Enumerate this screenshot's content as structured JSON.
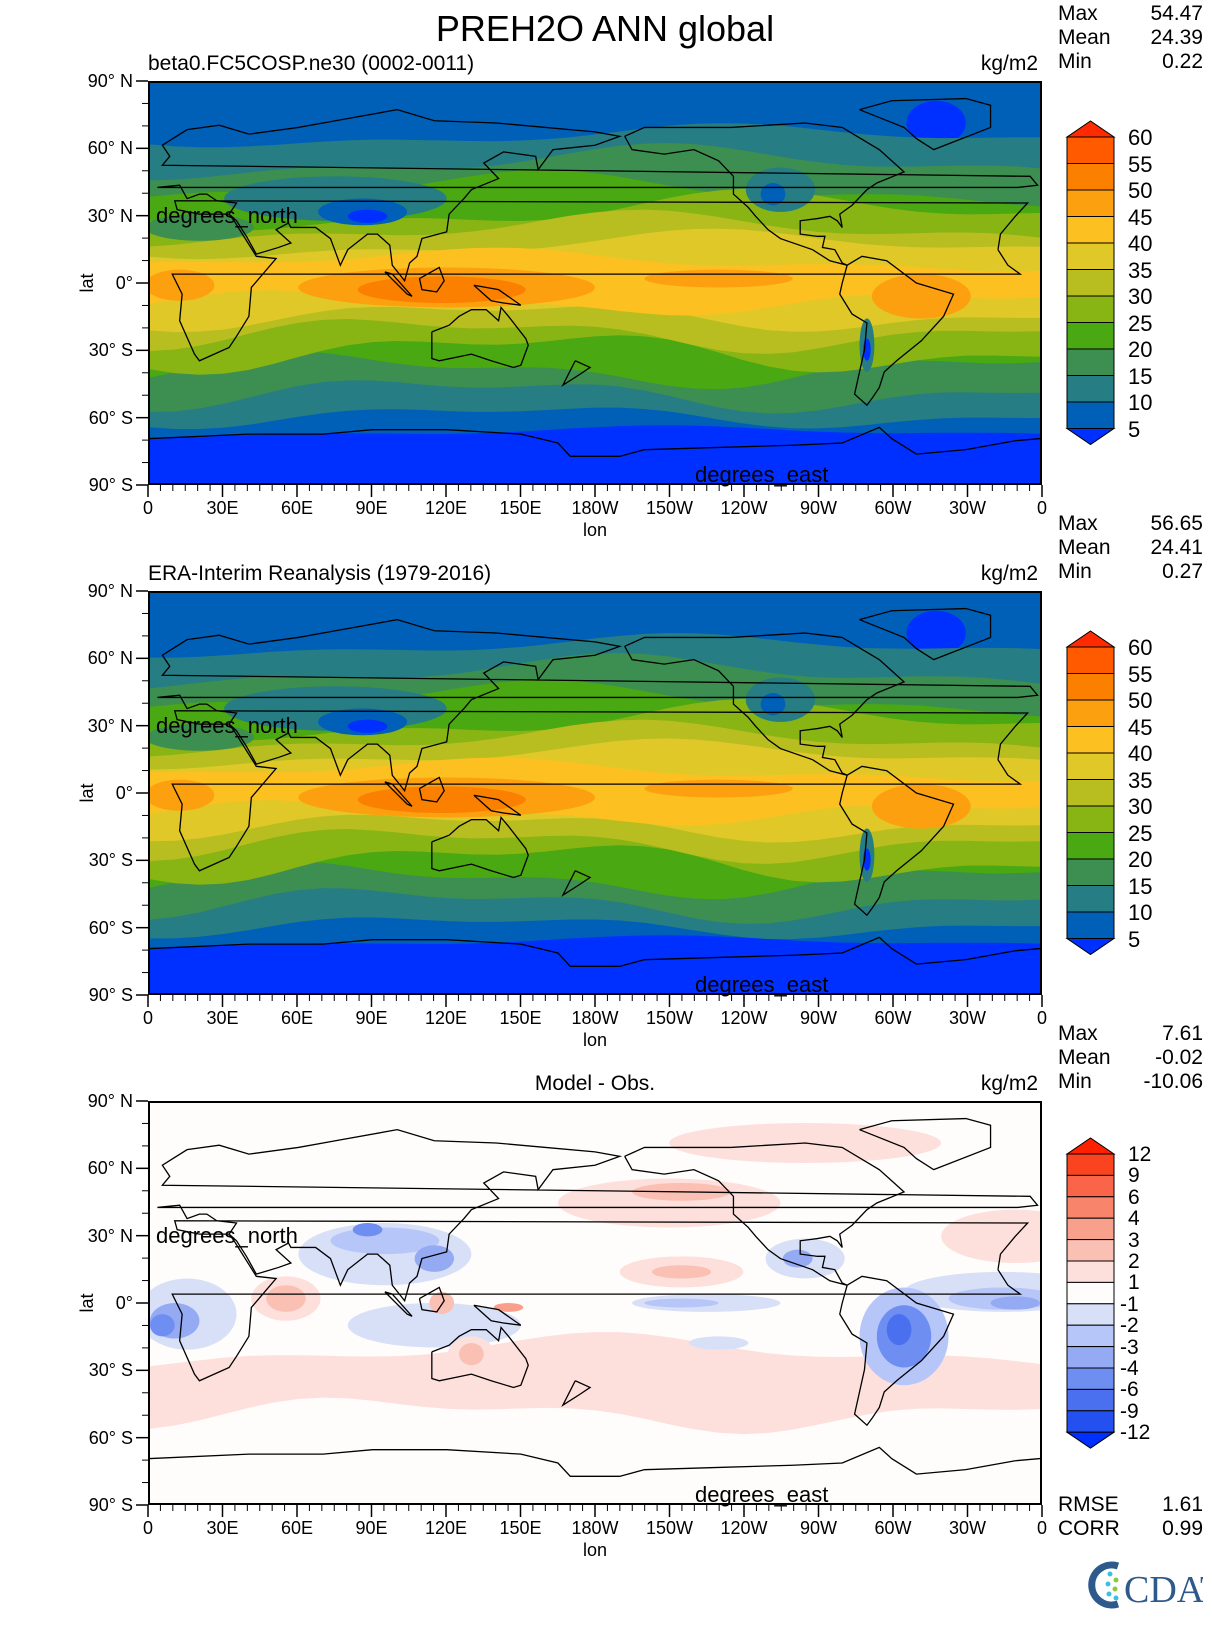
{
  "title": "PREH2O ANN global",
  "panels": [
    {
      "subtitle": "beta0.FC5COSP.ne30 (0002-0011)",
      "units": "kg/m2",
      "stats": [
        {
          "label": "Max",
          "value": "54.47"
        },
        {
          "label": "Mean",
          "value": "24.39"
        },
        {
          "label": "Min",
          "value": "0.22"
        }
      ],
      "colorbar": "abs"
    },
    {
      "subtitle": "ERA-Interim Reanalysis (1979-2016)",
      "units": "kg/m2",
      "stats": [
        {
          "label": "Max",
          "value": "56.65"
        },
        {
          "label": "Mean",
          "value": "24.41"
        },
        {
          "label": "Min",
          "value": "0.27"
        }
      ],
      "colorbar": "abs"
    },
    {
      "subtitle": "Model - Obs.",
      "units": "kg/m2",
      "stats": [
        {
          "label": "Max",
          "value": "7.61"
        },
        {
          "label": "Mean",
          "value": "-0.02"
        },
        {
          "label": "Min",
          "value": "-10.06"
        }
      ],
      "colorbar": "diff",
      "metrics": [
        {
          "label": "RMSE",
          "value": "1.61"
        },
        {
          "label": "CORR",
          "value": "0.99"
        }
      ]
    }
  ],
  "axes": {
    "lat_ticks": [
      "90° N",
      "60° N",
      "30° N",
      "0°",
      "30° S",
      "60° S",
      "90° S"
    ],
    "lon_ticks": [
      "0",
      "30E",
      "60E",
      "90E",
      "120E",
      "150E",
      "180W",
      "150W",
      "120W",
      "90W",
      "60W",
      "30W",
      "0"
    ],
    "xlabel": "lon",
    "ylabel": "lat",
    "lat_units": "degrees_north",
    "lon_units": "degrees_east"
  },
  "colorbars": {
    "abs": {
      "levels": [
        "60",
        "55",
        "50",
        "45",
        "40",
        "35",
        "30",
        "25",
        "20",
        "15",
        "10",
        "5"
      ],
      "colors_top_to_bottom": [
        "#ff2a00",
        "#ff5a00",
        "#fc8000",
        "#fca010",
        "#fcc020",
        "#e0c828",
        "#b8be20",
        "#88b414",
        "#4aa812",
        "#3c8f50",
        "#267d84",
        "#0060b8",
        "#0030ff"
      ]
    },
    "diff": {
      "levels": [
        "12",
        "9",
        "6",
        "4",
        "3",
        "2",
        "1",
        "-1",
        "-2",
        "-3",
        "-4",
        "-6",
        "-9",
        "-12"
      ],
      "colors_top_to_bottom": [
        "#ff2000",
        "#fa4420",
        "#fa6448",
        "#f8846c",
        "#f8a08c",
        "#fbc0b4",
        "#fde0dc",
        "#fefdfb",
        "#d8e0f8",
        "#b6c6f8",
        "#94abf4",
        "#6e8ef2",
        "#4a70f0",
        "#2450f0",
        "#0030ff"
      ]
    }
  },
  "chart_data": [
    {
      "type": "heatmap",
      "title": "beta0.FC5COSP.ne30 (0002-0011)",
      "variable": "PREH2O",
      "units": "kg/m2",
      "xlabel": "lon",
      "ylabel": "lat",
      "xlim": [
        0,
        360
      ],
      "ylim": [
        -90,
        90
      ],
      "max": 54.47,
      "mean": 24.39,
      "min": 0.22,
      "contour_levels": [
        5,
        10,
        15,
        20,
        25,
        30,
        35,
        40,
        45,
        50,
        55,
        60
      ]
    },
    {
      "type": "heatmap",
      "title": "ERA-Interim Reanalysis (1979-2016)",
      "variable": "PREH2O",
      "units": "kg/m2",
      "xlabel": "lon",
      "ylabel": "lat",
      "xlim": [
        0,
        360
      ],
      "ylim": [
        -90,
        90
      ],
      "max": 56.65,
      "mean": 24.41,
      "min": 0.27,
      "contour_levels": [
        5,
        10,
        15,
        20,
        25,
        30,
        35,
        40,
        45,
        50,
        55,
        60
      ]
    },
    {
      "type": "heatmap",
      "title": "Model - Obs.",
      "variable": "PREH2O",
      "units": "kg/m2",
      "xlabel": "lon",
      "ylabel": "lat",
      "xlim": [
        0,
        360
      ],
      "ylim": [
        -90,
        90
      ],
      "max": 7.61,
      "mean": -0.02,
      "min": -10.06,
      "rmse": 1.61,
      "corr": 0.99,
      "contour_levels": [
        -12,
        -9,
        -6,
        -4,
        -3,
        -2,
        -1,
        1,
        2,
        3,
        4,
        6,
        9,
        12
      ]
    }
  ],
  "logo": "CDAT"
}
